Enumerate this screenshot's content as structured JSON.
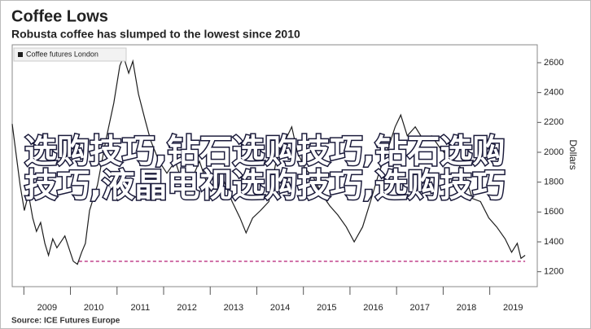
{
  "chart_data": {
    "type": "line",
    "title": "Coffee Lows",
    "subtitle": "Robusta coffee has slumped to the lowest since 2010",
    "y_axis_label": "Dollars",
    "source": "Source: ICE Futures Europe",
    "overlay_text": [
      "选购技巧,钻石选购技巧,钻石选购",
      "技巧,液晶电视选购技巧,选购技巧"
    ],
    "categories": [
      "2009",
      "2010",
      "2011",
      "2012",
      "2013",
      "2014",
      "2015",
      "2016",
      "2017",
      "2018",
      "2019"
    ],
    "x": [
      2008.75,
      2008.84,
      2008.92,
      2009.01,
      2009.1,
      2009.19,
      2009.27,
      2009.36,
      2009.45,
      2009.53,
      2009.62,
      2009.71,
      2009.88,
      2010.06,
      2010.15,
      2010.24,
      2010.32,
      2010.41,
      2010.58,
      2010.76,
      2010.93,
      2011.06,
      2011.14,
      2011.25,
      2011.34,
      2011.46,
      2011.6,
      2011.72,
      2011.9,
      2012.07,
      2012.25,
      2012.42,
      2012.59,
      2012.77,
      2012.94,
      2013.12,
      2013.29,
      2013.47,
      2013.64,
      2013.77,
      2013.91,
      2014.08,
      2014.26,
      2014.43,
      2014.61,
      2014.75,
      2014.87,
      2015.04,
      2015.22,
      2015.39,
      2015.57,
      2015.74,
      2015.92,
      2016.09,
      2016.27,
      2016.44,
      2016.62,
      2016.79,
      2016.97,
      2017.09,
      2017.23,
      2017.4,
      2017.58,
      2017.75,
      2017.93,
      2018.1,
      2018.28,
      2018.45,
      2018.63,
      2018.8,
      2018.98,
      2019.15,
      2019.33,
      2019.47,
      2019.59,
      2019.67,
      2019.76
    ],
    "series": [
      {
        "name": "Coffee futures London",
        "color": "#1e1e1e",
        "values": [
          2190,
          1970,
          1780,
          1610,
          1720,
          1560,
          1470,
          1530,
          1390,
          1310,
          1420,
          1360,
          1440,
          1270,
          1250,
          1330,
          1390,
          1610,
          1780,
          2080,
          2330,
          2580,
          2640,
          2530,
          2610,
          2390,
          2220,
          2080,
          1940,
          1860,
          1940,
          1780,
          1810,
          1940,
          1780,
          1750,
          1810,
          1670,
          1560,
          1460,
          1560,
          1610,
          1670,
          1970,
          2080,
          2170,
          2000,
          1890,
          1830,
          1720,
          1640,
          1580,
          1500,
          1400,
          1500,
          1670,
          1860,
          2000,
          2170,
          2250,
          2110,
          2170,
          2080,
          2110,
          2030,
          1970,
          1940,
          1860,
          1690,
          1670,
          1560,
          1500,
          1420,
          1330,
          1390,
          1290,
          1310
        ]
      }
    ],
    "reference_line": {
      "value": 1270,
      "x": [
        2010.18,
        2019.76
      ],
      "color": "#c0408a"
    },
    "xlim": [
      2008.75,
      2020.02
    ],
    "xticks": [
      2009,
      2010,
      2011,
      2012,
      2013,
      2014,
      2015,
      2016,
      2017,
      2018,
      2019
    ],
    "ylim": [
      1100,
      2720
    ],
    "yticks": [
      1200,
      1400,
      1600,
      1800,
      2000,
      2200,
      2400,
      2600
    ],
    "y_axis_side": "right",
    "grid": false,
    "legend": "top-left"
  }
}
